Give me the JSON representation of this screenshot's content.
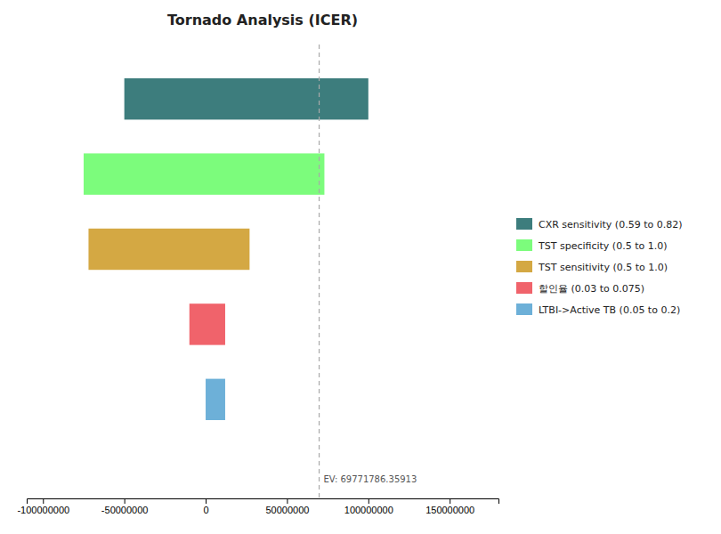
{
  "chart_data": {
    "type": "bar",
    "orientation": "horizontal",
    "title": "Tornado Analysis (ICER)",
    "categories": [
      "CXR sensitivity (0.59 to 0.82)",
      "TST specificity (0.5 to 1.0)",
      "TST sensitivity (0.5 to 1.0)",
      "할인율 (0.03 to 0.075)",
      "LTBI->Active TB (0.05 to 0.2)"
    ],
    "low": [
      -50000000,
      -75000000,
      -72000000,
      -10000000,
      0
    ],
    "high": [
      100000000,
      73000000,
      27000000,
      12000000,
      12000000
    ],
    "colors": [
      "#3d7d7d",
      "#7cfc7c",
      "#d4a843",
      "#f0636b",
      "#6db0d8"
    ],
    "reference_line": {
      "value": 69771786.35913,
      "label": "EV: 69771786.35913",
      "color": "#aaaaaa",
      "line_style": "dashed"
    },
    "xlim": [
      -110000000,
      180000000
    ],
    "xticks": [
      -100000000,
      -50000000,
      0,
      50000000,
      100000000,
      150000000
    ],
    "tick_labels": "x",
    "grid": false,
    "legend": "right"
  }
}
